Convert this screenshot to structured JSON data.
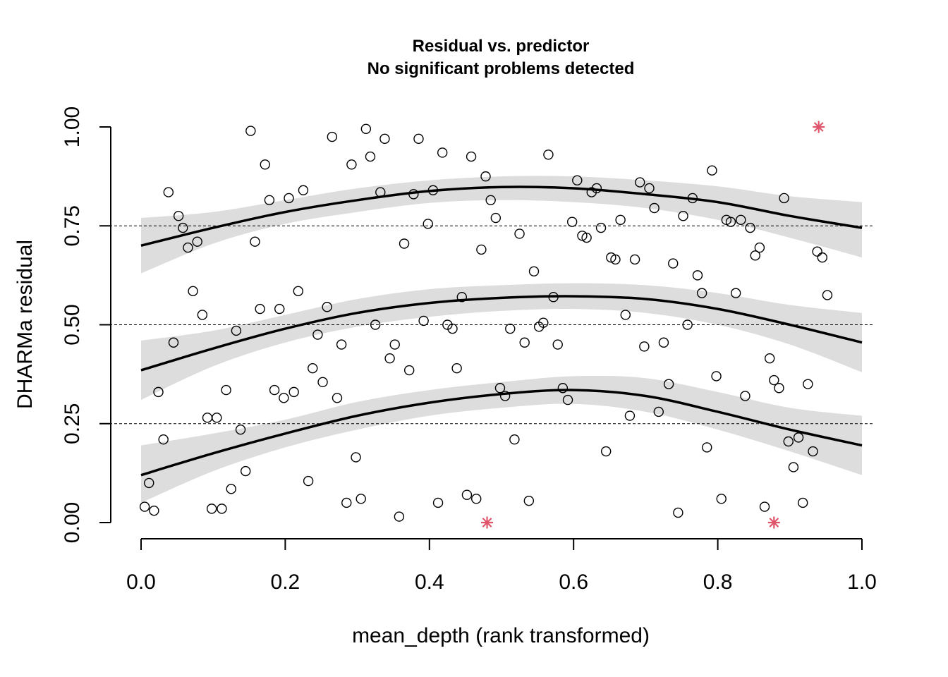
{
  "chart_data": {
    "type": "scatter",
    "title": "Residual vs. predictor",
    "subtitle": "No significant problems detected",
    "xlabel": "mean_depth (rank transformed)",
    "ylabel": "DHARMa residual",
    "xlim": [
      0,
      1
    ],
    "ylim": [
      0,
      1
    ],
    "x_ticks": [
      0.0,
      0.2,
      0.4,
      0.6,
      0.8,
      1.0
    ],
    "x_tick_labels": [
      "0.0",
      "0.2",
      "0.4",
      "0.6",
      "0.8",
      "1.0"
    ],
    "y_ticks": [
      0.0,
      0.25,
      0.5,
      0.75,
      1.0
    ],
    "y_tick_labels": [
      "0.00",
      "0.25",
      "0.50",
      "0.75",
      "1.00"
    ],
    "reference_lines": [
      0.25,
      0.5,
      0.75
    ],
    "colors": {
      "points": "#000000",
      "outliers": "#DF536B",
      "band": "#DDDDDD",
      "fit": "#000000"
    },
    "points": [
      [
        0.005,
        0.04
      ],
      [
        0.011,
        0.1
      ],
      [
        0.018,
        0.03
      ],
      [
        0.024,
        0.33
      ],
      [
        0.031,
        0.21
      ],
      [
        0.038,
        0.835
      ],
      [
        0.045,
        0.455
      ],
      [
        0.052,
        0.775
      ],
      [
        0.058,
        0.745
      ],
      [
        0.065,
        0.695
      ],
      [
        0.072,
        0.585
      ],
      [
        0.078,
        0.71
      ],
      [
        0.085,
        0.525
      ],
      [
        0.092,
        0.265
      ],
      [
        0.098,
        0.035
      ],
      [
        0.105,
        0.265
      ],
      [
        0.112,
        0.035
      ],
      [
        0.118,
        0.335
      ],
      [
        0.125,
        0.085
      ],
      [
        0.132,
        0.485
      ],
      [
        0.138,
        0.235
      ],
      [
        0.145,
        0.13
      ],
      [
        0.152,
        0.99
      ],
      [
        0.158,
        0.71
      ],
      [
        0.165,
        0.54
      ],
      [
        0.172,
        0.905
      ],
      [
        0.178,
        0.815
      ],
      [
        0.185,
        0.335
      ],
      [
        0.192,
        0.54
      ],
      [
        0.198,
        0.315
      ],
      [
        0.205,
        0.82
      ],
      [
        0.212,
        0.33
      ],
      [
        0.218,
        0.585
      ],
      [
        0.225,
        0.84
      ],
      [
        0.232,
        0.105
      ],
      [
        0.238,
        0.39
      ],
      [
        0.245,
        0.475
      ],
      [
        0.252,
        0.355
      ],
      [
        0.258,
        0.545
      ],
      [
        0.265,
        0.975
      ],
      [
        0.272,
        0.315
      ],
      [
        0.278,
        0.45
      ],
      [
        0.285,
        0.05
      ],
      [
        0.292,
        0.905
      ],
      [
        0.298,
        0.165
      ],
      [
        0.305,
        0.06
      ],
      [
        0.312,
        0.995
      ],
      [
        0.318,
        0.925
      ],
      [
        0.325,
        0.5
      ],
      [
        0.332,
        0.835
      ],
      [
        0.338,
        0.97
      ],
      [
        0.345,
        0.415
      ],
      [
        0.352,
        0.45
      ],
      [
        0.358,
        0.015
      ],
      [
        0.365,
        0.705
      ],
      [
        0.372,
        0.385
      ],
      [
        0.378,
        0.83
      ],
      [
        0.385,
        0.97
      ],
      [
        0.392,
        0.51
      ],
      [
        0.398,
        0.755
      ],
      [
        0.405,
        0.84
      ],
      [
        0.412,
        0.05
      ],
      [
        0.418,
        0.935
      ],
      [
        0.425,
        0.5
      ],
      [
        0.432,
        0.49
      ],
      [
        0.438,
        0.39
      ],
      [
        0.445,
        0.57
      ],
      [
        0.452,
        0.07
      ],
      [
        0.458,
        0.925
      ],
      [
        0.465,
        0.06
      ],
      [
        0.472,
        0.69
      ],
      [
        0.478,
        0.875
      ],
      [
        0.485,
        0.815
      ],
      [
        0.492,
        0.77
      ],
      [
        0.498,
        0.34
      ],
      [
        0.505,
        0.32
      ],
      [
        0.512,
        0.49
      ],
      [
        0.518,
        0.21
      ],
      [
        0.525,
        0.73
      ],
      [
        0.532,
        0.455
      ],
      [
        0.538,
        0.055
      ],
      [
        0.545,
        0.635
      ],
      [
        0.552,
        0.495
      ],
      [
        0.558,
        0.505
      ],
      [
        0.565,
        0.93
      ],
      [
        0.572,
        0.57
      ],
      [
        0.578,
        0.45
      ],
      [
        0.585,
        0.34
      ],
      [
        0.592,
        0.31
      ],
      [
        0.598,
        0.76
      ],
      [
        0.605,
        0.865
      ],
      [
        0.612,
        0.725
      ],
      [
        0.618,
        0.72
      ],
      [
        0.625,
        0.835
      ],
      [
        0.632,
        0.845
      ],
      [
        0.638,
        0.745
      ],
      [
        0.645,
        0.18
      ],
      [
        0.652,
        0.67
      ],
      [
        0.658,
        0.665
      ],
      [
        0.665,
        0.765
      ],
      [
        0.672,
        0.525
      ],
      [
        0.678,
        0.27
      ],
      [
        0.685,
        0.665
      ],
      [
        0.692,
        0.86
      ],
      [
        0.698,
        0.445
      ],
      [
        0.705,
        0.845
      ],
      [
        0.712,
        0.795
      ],
      [
        0.718,
        0.28
      ],
      [
        0.725,
        0.455
      ],
      [
        0.732,
        0.35
      ],
      [
        0.738,
        0.655
      ],
      [
        0.745,
        0.025
      ],
      [
        0.752,
        0.775
      ],
      [
        0.758,
        0.5
      ],
      [
        0.765,
        0.82
      ],
      [
        0.772,
        0.625
      ],
      [
        0.778,
        0.58
      ],
      [
        0.785,
        0.19
      ],
      [
        0.792,
        0.89
      ],
      [
        0.798,
        0.37
      ],
      [
        0.805,
        0.06
      ],
      [
        0.812,
        0.765
      ],
      [
        0.818,
        0.76
      ],
      [
        0.825,
        0.58
      ],
      [
        0.832,
        0.765
      ],
      [
        0.838,
        0.32
      ],
      [
        0.845,
        0.745
      ],
      [
        0.852,
        0.675
      ],
      [
        0.858,
        0.695
      ],
      [
        0.865,
        0.04
      ],
      [
        0.872,
        0.415
      ],
      [
        0.878,
        0.36
      ],
      [
        0.885,
        0.34
      ],
      [
        0.892,
        0.82
      ],
      [
        0.898,
        0.205
      ],
      [
        0.905,
        0.14
      ],
      [
        0.912,
        0.215
      ],
      [
        0.918,
        0.05
      ],
      [
        0.925,
        0.35
      ],
      [
        0.932,
        0.18
      ],
      [
        0.938,
        0.685
      ],
      [
        0.945,
        0.67
      ],
      [
        0.952,
        0.575
      ]
    ],
    "outliers": [
      [
        0.48,
        0.0
      ],
      [
        0.878,
        0.0
      ],
      [
        0.94,
        1.0
      ]
    ],
    "quantile_fits": [
      {
        "quantile": 0.25,
        "x": [
          0.0,
          0.1,
          0.2,
          0.3,
          0.4,
          0.5,
          0.6,
          0.7,
          0.8,
          0.9,
          1.0
        ],
        "y": [
          0.12,
          0.175,
          0.225,
          0.27,
          0.303,
          0.325,
          0.335,
          0.32,
          0.28,
          0.235,
          0.195
        ],
        "lower": [
          0.05,
          0.13,
          0.19,
          0.235,
          0.27,
          0.29,
          0.3,
          0.28,
          0.235,
          0.18,
          0.12
        ],
        "upper": [
          0.195,
          0.225,
          0.26,
          0.305,
          0.335,
          0.355,
          0.37,
          0.365,
          0.33,
          0.29,
          0.27
        ]
      },
      {
        "quantile": 0.5,
        "x": [
          0.0,
          0.1,
          0.2,
          0.3,
          0.4,
          0.5,
          0.6,
          0.7,
          0.8,
          0.9,
          1.0
        ],
        "y": [
          0.385,
          0.44,
          0.49,
          0.53,
          0.555,
          0.568,
          0.572,
          0.565,
          0.54,
          0.5,
          0.455
        ],
        "lower": [
          0.31,
          0.395,
          0.455,
          0.495,
          0.52,
          0.535,
          0.54,
          0.53,
          0.5,
          0.45,
          0.38
        ],
        "upper": [
          0.46,
          0.485,
          0.525,
          0.565,
          0.59,
          0.6,
          0.605,
          0.6,
          0.58,
          0.55,
          0.53
        ]
      },
      {
        "quantile": 0.75,
        "x": [
          0.0,
          0.1,
          0.2,
          0.3,
          0.4,
          0.5,
          0.6,
          0.7,
          0.8,
          0.9,
          1.0
        ],
        "y": [
          0.7,
          0.745,
          0.785,
          0.815,
          0.838,
          0.848,
          0.845,
          0.83,
          0.81,
          0.775,
          0.745
        ],
        "lower": [
          0.63,
          0.705,
          0.755,
          0.785,
          0.808,
          0.815,
          0.81,
          0.795,
          0.765,
          0.72,
          0.67
        ],
        "upper": [
          0.77,
          0.785,
          0.815,
          0.845,
          0.865,
          0.875,
          0.875,
          0.865,
          0.85,
          0.825,
          0.81
        ]
      }
    ]
  }
}
